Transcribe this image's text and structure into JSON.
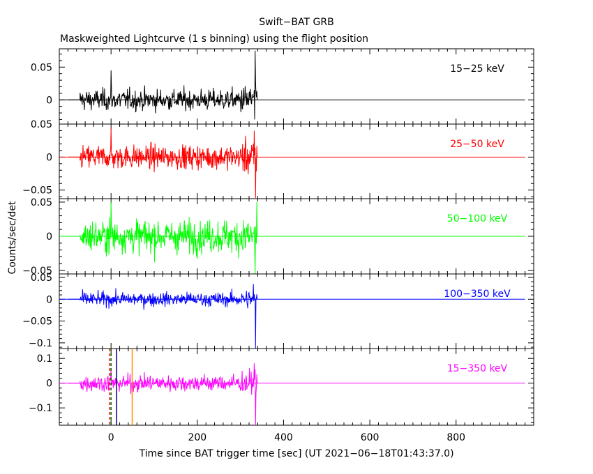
{
  "title": "Swift−BAT GRB",
  "subtitle": "Maskweighted Lightcurve (1 s binning) using the flight position",
  "chart_data": {
    "type": "line",
    "title": "Swift−BAT GRB",
    "subtitle": "Maskweighted Lightcurve (1 s binning) using the flight position",
    "xlabel": "Time since BAT trigger time [sec] (UT 2021−06−18T01:43:37.0)",
    "ylabel": "Counts/sec/det",
    "xlim": [
      -120,
      980
    ],
    "x_ticks": [
      0,
      200,
      400,
      600,
      800
    ],
    "x_tick_labels": [
      "0",
      "200",
      "400",
      "600",
      "800"
    ],
    "data_x_range": [
      -72,
      338
    ],
    "panels": [
      {
        "name": "15−25 keV",
        "color": "#000000",
        "ylim": [
          -0.037,
          0.078
        ],
        "y_ticks": [
          0,
          0.05
        ],
        "y_tick_labels": [
          "0",
          "0.05"
        ],
        "noise_sigma": 0.008,
        "peaks": [
          {
            "x": 0,
            "y": 0.045
          },
          {
            "x": 334,
            "y": 0.075
          },
          {
            "x": 333,
            "y": -0.03
          }
        ]
      },
      {
        "name": "25−50 keV",
        "color": "#ff0000",
        "ylim": [
          -0.063,
          0.05
        ],
        "y_ticks": [
          -0.05,
          0,
          0.05
        ],
        "y_tick_labels": [
          "−0.05",
          "0",
          "0.05"
        ],
        "noise_sigma": 0.009,
        "peaks": [
          {
            "x": 0,
            "y": 0.045
          },
          {
            "x": 335,
            "y": -0.062
          },
          {
            "x": 332,
            "y": 0.04
          }
        ]
      },
      {
        "name": "50−100 keV",
        "color": "#00ff00",
        "ylim": [
          -0.055,
          0.055
        ],
        "y_ticks": [
          -0.05,
          0,
          0.05
        ],
        "y_tick_labels": [
          "−0.05",
          "0",
          "0.05"
        ],
        "noise_sigma": 0.012,
        "peaks": [
          {
            "x": 0,
            "y": 0.05
          },
          {
            "x": 334,
            "y": -0.055
          },
          {
            "x": 338,
            "y": 0.05
          }
        ]
      },
      {
        "name": "100−350 keV",
        "color": "#0000ff",
        "ylim": [
          -0.113,
          0.058
        ],
        "y_ticks": [
          -0.1,
          -0.05,
          0,
          0.05
        ],
        "y_tick_labels": [
          "−0.1",
          "−0.05",
          "0",
          "0.05"
        ],
        "noise_sigma": 0.008,
        "peaks": [
          {
            "x": 335,
            "y": -0.113
          },
          {
            "x": 330,
            "y": 0.035
          }
        ]
      },
      {
        "name": "15−350 keV",
        "color": "#ff00ff",
        "ylim": [
          -0.17,
          0.14
        ],
        "y_ticks": [
          -0.1,
          0,
          0.1
        ],
        "y_tick_labels": [
          "−0.1",
          "0",
          "0.1"
        ],
        "noise_sigma": 0.017,
        "peaks": [
          {
            "x": 0,
            "y": 0.06
          },
          {
            "x": 335,
            "y": -0.17
          },
          {
            "x": 332,
            "y": 0.08
          }
        ]
      }
    ],
    "markers": [
      {
        "x": -3,
        "color": "#ff0000",
        "style": "dashed"
      },
      {
        "x": 0,
        "color": "#006400",
        "style": "dashed"
      },
      {
        "x": 13,
        "color": "#000080",
        "style": "solid"
      },
      {
        "x": 49,
        "color": "#ff8c00",
        "style": "solid"
      }
    ],
    "grid": false,
    "legend": "panel-top-right"
  }
}
